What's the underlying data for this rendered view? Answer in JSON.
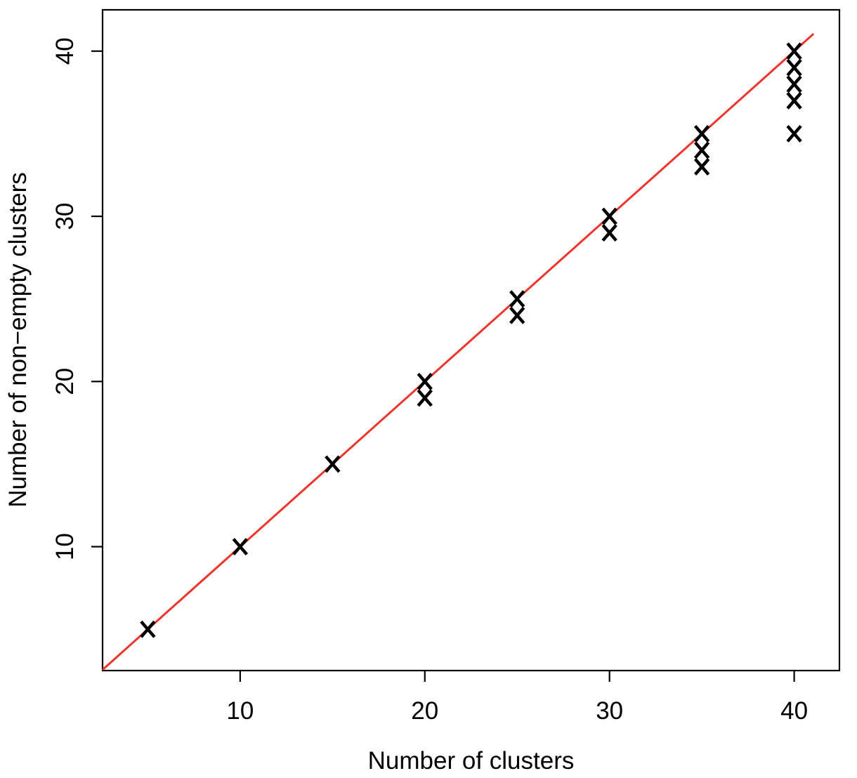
{
  "figure": {
    "background": "#ffffff",
    "axis_color": "#000000",
    "text_color": "#000000"
  },
  "chart_data": {
    "type": "scatter",
    "title": "",
    "xlabel": "Number of clusters",
    "ylabel": "Number of non−empty clusters",
    "xlim": [
      2.55,
      42.45
    ],
    "ylim": [
      2.5,
      42.5
    ],
    "x_ticks": [
      "10",
      "20",
      "30",
      "40"
    ],
    "x_tick_values": [
      10,
      20,
      30,
      40
    ],
    "y_ticks": [
      "10",
      "20",
      "30",
      "40"
    ],
    "y_tick_values": [
      10,
      20,
      30,
      40
    ],
    "grid": false,
    "legend_position": "none",
    "marker": "x-cross",
    "marker_color": "#000000",
    "points": [
      {
        "x": 5,
        "y": 5
      },
      {
        "x": 10,
        "y": 10
      },
      {
        "x": 15,
        "y": 15
      },
      {
        "x": 20,
        "y": 19
      },
      {
        "x": 20,
        "y": 20
      },
      {
        "x": 25,
        "y": 24
      },
      {
        "x": 25,
        "y": 25
      },
      {
        "x": 30,
        "y": 29
      },
      {
        "x": 30,
        "y": 30
      },
      {
        "x": 35,
        "y": 33
      },
      {
        "x": 35,
        "y": 34
      },
      {
        "x": 35,
        "y": 35
      },
      {
        "x": 40,
        "y": 35
      },
      {
        "x": 40,
        "y": 37
      },
      {
        "x": 40,
        "y": 38
      },
      {
        "x": 40,
        "y": 39
      },
      {
        "x": 40,
        "y": 40
      }
    ],
    "identity_line": {
      "slope": 1,
      "intercept": 0,
      "color": "#ee352b",
      "v_start": 2.55,
      "v_end": 41.05
    }
  }
}
